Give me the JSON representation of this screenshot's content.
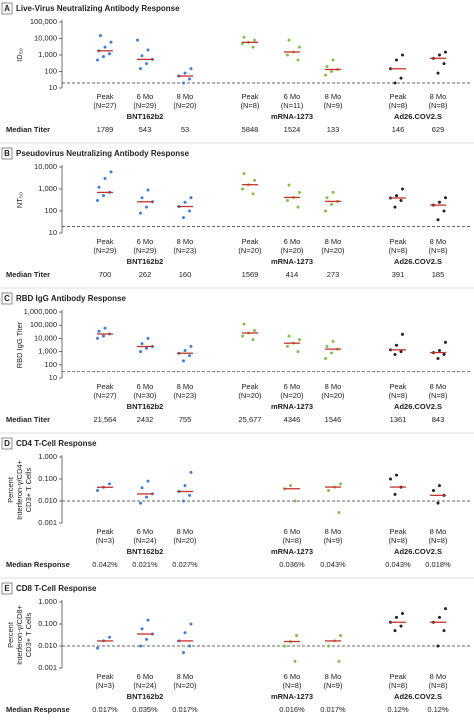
{
  "chart_data": [
    {
      "type": "dot",
      "label": "A",
      "title": "Live-Virus Neutralizing Antibody Response",
      "ylabel": [
        "ID₅₀"
      ],
      "row_label": "Median Titer",
      "yscale": "log",
      "ylim": [
        10,
        100000
      ],
      "yticks": [
        10,
        100,
        {
          "value": 1000,
          "label": "1,000"
        },
        {
          "value": 10000,
          "label": "10,000"
        },
        {
          "value": 100000,
          "label": "100,000"
        }
      ],
      "threshold": 20,
      "groups": [
        {
          "name": "BNT162b2",
          "color": "#3d7fd6",
          "timepoints": [
            {
              "label": "Peak",
              "n": "(N=27)",
              "median": 1789,
              "points": [
                500,
                800,
                1200,
                1789,
                3000,
                6000,
                15000
              ]
            },
            {
              "label": "6 Mo",
              "n": "(N=29)",
              "median": 543,
              "points": [
                150,
                300,
                543,
                900,
                2000,
                8000
              ]
            },
            {
              "label": "8 Mo",
              "n": "(N=20)",
              "median": 53,
              "points": [
                20,
                35,
                53,
                80,
                150
              ]
            }
          ]
        },
        {
          "name": "mRNA-1273",
          "color": "#80c24a",
          "timepoints": [
            {
              "label": "Peak",
              "n": "(N=8)",
              "median": 5848,
              "points": [
                3000,
                5000,
                5848,
                8000,
                12000
              ]
            },
            {
              "label": "6 Mo",
              "n": "(N=11)",
              "median": 1524,
              "points": [
                500,
                1000,
                1524,
                3000,
                8000
              ]
            },
            {
              "label": "8 Mo",
              "n": "(N=9)",
              "median": 133,
              "points": [
                60,
                100,
                133,
                200,
                500
              ]
            }
          ]
        },
        {
          "name": "Ad26.COV2.S",
          "color": "#222222",
          "timepoints": [
            {
              "label": "Peak",
              "n": "(N=8)",
              "median": 146,
              "points": [
                20,
                40,
                146,
                500,
                1000
              ]
            },
            {
              "label": "8 Mo",
              "n": "(N=8)",
              "median": 629,
              "points": [
                80,
                300,
                629,
                1000,
                1500
              ]
            }
          ]
        }
      ]
    },
    {
      "type": "dot",
      "label": "B",
      "title": "Pseudovirus Neutralizing Antibody Response",
      "ylabel": [
        "NT₅₀"
      ],
      "row_label": "Median Titer",
      "yscale": "log",
      "ylim": [
        10,
        10000
      ],
      "yticks": [
        10,
        100,
        {
          "value": 1000,
          "label": "1,000"
        },
        {
          "value": 10000,
          "label": "10,000"
        }
      ],
      "threshold": 20,
      "groups": [
        {
          "name": "BNT162b2",
          "color": "#3d7fd6",
          "timepoints": [
            {
              "label": "Peak",
              "n": "(N=29)",
              "median": 700,
              "points": [
                300,
                500,
                700,
                1200,
                3000,
                6000
              ]
            },
            {
              "label": "6 Mo",
              "n": "(N=29)",
              "median": 262,
              "points": [
                80,
                150,
                262,
                400,
                900
              ]
            },
            {
              "label": "8 Mo",
              "n": "(N=23)",
              "median": 160,
              "points": [
                50,
                100,
                160,
                250,
                400
              ]
            }
          ]
        },
        {
          "name": "mRNA-1273",
          "color": "#80c24a",
          "timepoints": [
            {
              "label": "Peak",
              "n": "(N=20)",
              "median": 1569,
              "points": [
                600,
                1000,
                1569,
                2500,
                5000
              ]
            },
            {
              "label": "6 Mo",
              "n": "(N=20)",
              "median": 414,
              "points": [
                150,
                300,
                414,
                700,
                1500
              ]
            },
            {
              "label": "8 Mo",
              "n": "(N=20)",
              "median": 273,
              "points": [
                100,
                200,
                273,
                400,
                700
              ]
            }
          ]
        },
        {
          "name": "Ad26.COV2.S",
          "color": "#222222",
          "timepoints": [
            {
              "label": "Peak",
              "n": "(N=8)",
              "median": 391,
              "points": [
                150,
                300,
                391,
                500,
                1000
              ]
            },
            {
              "label": "8 Mo",
              "n": "(N=8)",
              "median": 185,
              "points": [
                40,
                100,
                185,
                250,
                400
              ]
            }
          ]
        }
      ]
    },
    {
      "type": "dot",
      "label": "C",
      "title": "RBD IgG Antibody Response",
      "ylabel": [
        "RBD IgG Titer"
      ],
      "row_label": "Median Titer",
      "yscale": "log",
      "ylim": [
        10,
        1000000
      ],
      "yticks": [
        10,
        100,
        {
          "value": 1000,
          "label": "1,000"
        },
        {
          "value": 10000,
          "label": "10,000"
        },
        {
          "value": 100000,
          "label": "100,000"
        },
        {
          "value": 1000000,
          "label": "1,000,000"
        }
      ],
      "threshold": 30,
      "groups": [
        {
          "name": "BNT162b2",
          "color": "#3d7fd6",
          "timepoints": [
            {
              "label": "Peak",
              "n": "(N=27)",
              "median": 21564,
              "median_label": "21,564",
              "points": [
                10000,
                15000,
                21564,
                35000,
                60000
              ]
            },
            {
              "label": "6 Mo",
              "n": "(N=30)",
              "median": 2432,
              "points": [
                1000,
                1800,
                2432,
                4000,
                10000
              ]
            },
            {
              "label": "8 Mo",
              "n": "(N=23)",
              "median": 755,
              "points": [
                200,
                500,
                755,
                1200,
                2500
              ]
            }
          ]
        },
        {
          "name": "mRNA-1273",
          "color": "#80c24a",
          "timepoints": [
            {
              "label": "Peak",
              "n": "(N=20)",
              "median": 25677,
              "median_label": "25,677",
              "points": [
                8000,
                15000,
                25677,
                40000,
                120000
              ]
            },
            {
              "label": "6 Mo",
              "n": "(N=20)",
              "median": 4346,
              "points": [
                1000,
                2500,
                4346,
                8000,
                15000
              ]
            },
            {
              "label": "8 Mo",
              "n": "(N=20)",
              "median": 1546,
              "points": [
                300,
                800,
                1546,
                2500,
                6000
              ]
            }
          ]
        },
        {
          "name": "Ad26.COV2.S",
          "color": "#222222",
          "timepoints": [
            {
              "label": "Peak",
              "n": "(N=8)",
              "median": 1361,
              "points": [
                600,
                1000,
                1361,
                3000,
                20000
              ]
            },
            {
              "label": "8 Mo",
              "n": "(N=8)",
              "median": 843,
              "points": [
                300,
                600,
                843,
                1200,
                5000
              ]
            }
          ]
        }
      ]
    },
    {
      "type": "dot",
      "label": "D",
      "title": "CD4 T-Cell Response",
      "ylabel": [
        "Percent",
        "Interferon-γ/CD4+",
        "CD3+ T Cells"
      ],
      "row_label": "Median Response",
      "yscale": "log",
      "ylim": [
        0.001,
        1
      ],
      "yticks": [
        0.001,
        {
          "value": 0.01,
          "label": "0.010"
        },
        {
          "value": 0.1,
          "label": "0.100"
        },
        {
          "value": 1,
          "label": "1.000"
        }
      ],
      "threshold": 0.01,
      "groups": [
        {
          "name": "BNT162b2",
          "color": "#3d7fd6",
          "timepoints": [
            {
              "label": "Peak",
              "n": "(N=3)",
              "median": 0.042,
              "median_label": "0.042%",
              "points": [
                0.03,
                0.042,
                0.06
              ]
            },
            {
              "label": "6 Mo",
              "n": "(N=24)",
              "median": 0.021,
              "median_label": "0.021%",
              "points": [
                0.008,
                0.015,
                0.021,
                0.04,
                0.08
              ]
            },
            {
              "label": "8 Mo",
              "n": "(N=20)",
              "median": 0.027,
              "median_label": "0.027%",
              "points": [
                0.01,
                0.018,
                0.027,
                0.05,
                0.2
              ]
            }
          ]
        },
        {
          "name": "mRNA-1273",
          "color": "#80c24a",
          "timepoints": [
            {
              "label": "6 Mo",
              "n": "(N=8)",
              "median": 0.036,
              "median_label": "0.036%",
              "points": [
                0.01,
                0.036,
                0.05
              ]
            },
            {
              "label": "8 Mo",
              "n": "(N=9)",
              "median": 0.043,
              "median_label": "0.043%",
              "points": [
                0.003,
                0.03,
                0.043,
                0.06
              ]
            }
          ]
        },
        {
          "name": "Ad26.COV2.S",
          "color": "#222222",
          "timepoints": [
            {
              "label": "Peak",
              "n": "(N=8)",
              "median": 0.043,
              "median_label": "0.043%",
              "points": [
                0.02,
                0.043,
                0.1,
                0.15
              ]
            },
            {
              "label": "8 Mo",
              "n": "(N=8)",
              "median": 0.018,
              "median_label": "0.018%",
              "points": [
                0.008,
                0.018,
                0.03,
                0.05
              ]
            }
          ]
        }
      ]
    },
    {
      "type": "dot",
      "label": "E",
      "title": "CD8 T-Cell Response",
      "ylabel": [
        "Percent",
        "Interferon-γ/CD8+",
        "CD3+ T Cells"
      ],
      "row_label": "Median Response",
      "yscale": "log",
      "ylim": [
        0.001,
        1
      ],
      "yticks": [
        0.001,
        {
          "value": 0.01,
          "label": "0.010"
        },
        {
          "value": 0.1,
          "label": "0.100"
        },
        {
          "value": 1,
          "label": "1.000"
        }
      ],
      "threshold": 0.01,
      "groups": [
        {
          "name": "BNT162b2",
          "color": "#3d7fd6",
          "timepoints": [
            {
              "label": "Peak",
              "n": "(N=3)",
              "median": 0.017,
              "median_label": "0.017%",
              "points": [
                0.008,
                0.017,
                0.025
              ]
            },
            {
              "label": "6 Mo",
              "n": "(N=24)",
              "median": 0.035,
              "median_label": "0.035%",
              "points": [
                0.01,
                0.02,
                0.035,
                0.06,
                0.15
              ]
            },
            {
              "label": "8 Mo",
              "n": "(N=20)",
              "median": 0.017,
              "median_label": "0.017%",
              "points": [
                0.005,
                0.01,
                0.017,
                0.04,
                0.1
              ]
            }
          ]
        },
        {
          "name": "mRNA-1273",
          "color": "#80c24a",
          "timepoints": [
            {
              "label": "6 Mo",
              "n": "(N=8)",
              "median": 0.016,
              "median_label": "0.016%",
              "points": [
                0.002,
                0.01,
                0.016,
                0.03
              ]
            },
            {
              "label": "8 Mo",
              "n": "(N=9)",
              "median": 0.017,
              "median_label": "0.017%",
              "points": [
                0.002,
                0.01,
                0.017,
                0.03
              ]
            }
          ]
        },
        {
          "name": "Ad26.COV2.S",
          "color": "#222222",
          "timepoints": [
            {
              "label": "Peak",
              "n": "(N=8)",
              "median": 0.12,
              "median_label": "0.12%",
              "points": [
                0.05,
                0.08,
                0.12,
                0.2,
                0.3
              ]
            },
            {
              "label": "8 Mo",
              "n": "(N=8)",
              "median": 0.12,
              "median_label": "0.12%",
              "points": [
                0.01,
                0.05,
                0.12,
                0.2,
                0.5
              ]
            }
          ]
        }
      ]
    }
  ]
}
